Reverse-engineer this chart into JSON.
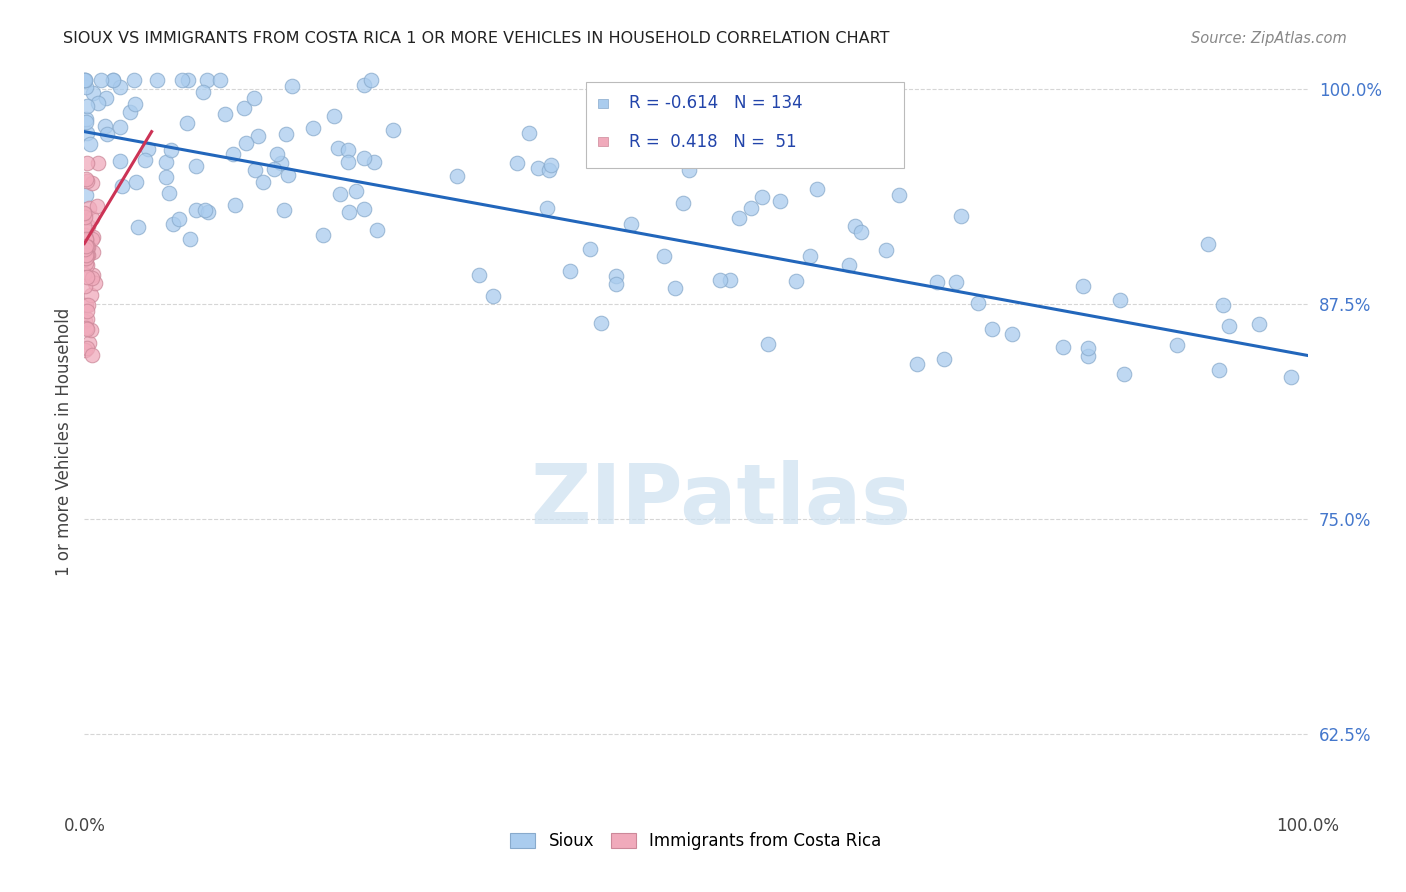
{
  "title": "SIOUX VS IMMIGRANTS FROM COSTA RICA 1 OR MORE VEHICLES IN HOUSEHOLD CORRELATION CHART",
  "source": "Source: ZipAtlas.com",
  "ylabel": "1 or more Vehicles in Household",
  "sioux_color": "#aaccee",
  "sioux_edge_color": "#88aacc",
  "costarica_color": "#f0aabb",
  "costarica_edge_color": "#cc8899",
  "trend_sioux_color": "#2266bb",
  "trend_costarica_color": "#cc3355",
  "watermark_color": "#cce0f0",
  "background_color": "#ffffff",
  "grid_color": "#cccccc",
  "xlim": [
    0.0,
    1.0
  ],
  "ylim": [
    0.58,
    1.01
  ],
  "yticks": [
    0.625,
    0.75,
    0.875,
    1.0
  ],
  "ytick_labels": [
    "62.5%",
    "75.0%",
    "87.5%",
    "100.0%"
  ],
  "trend_sioux_x0": 0.0,
  "trend_sioux_y0": 0.975,
  "trend_sioux_x1": 1.0,
  "trend_sioux_y1": 0.845,
  "trend_cr_x0": 0.0,
  "trend_cr_y0": 0.91,
  "trend_cr_x1": 0.055,
  "trend_cr_y1": 0.975,
  "legend_R_sioux": "-0.614",
  "legend_N_sioux": "134",
  "legend_R_cr": "0.418",
  "legend_N_cr": "51",
  "seed": 12345
}
